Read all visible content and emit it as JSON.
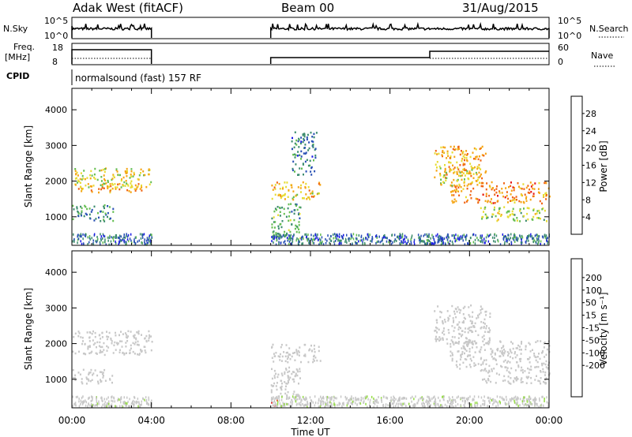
{
  "header": {
    "radar": "Adak West (fitACF)",
    "beam": "Beam 00",
    "date": "31/Aug/2015"
  },
  "params": {
    "nsky_label": "N.Sky",
    "nsky_ticks": [
      "10^5",
      "10^0"
    ],
    "nsearch_label": "N.Search",
    "nsearch_ticks": [
      "10^5",
      "10^0"
    ],
    "freq_label_1": "Freq.",
    "freq_label_2": "[MHz]",
    "freq_ticks": [
      "18",
      "8"
    ],
    "nave_label": "Nave",
    "nave_ticks": [
      "60",
      "0"
    ],
    "cpid_label": "CPID",
    "cpid_text": "normalsound (fast) 157 RF"
  },
  "chart_data": [
    {
      "type": "heatmap",
      "name": "power",
      "ylabel": "Slant Range [km]",
      "xlabel": "Time UT",
      "xlim": [
        0,
        24
      ],
      "ylim": [
        200,
        4600
      ],
      "ytick_labels": [
        "1000",
        "2000",
        "3000",
        "4000"
      ],
      "colorbar": {
        "label": "Power [dB]",
        "range": [
          0,
          32
        ],
        "tick_labels": [
          "4",
          "8",
          "12",
          "16",
          "20",
          "24",
          "28"
        ],
        "colors": [
          "#1a1ae6",
          "#2850b4",
          "#3c8c6e",
          "#64be50",
          "#e6dc32",
          "#f5a514",
          "#f06414",
          "#e61414"
        ]
      },
      "bands": [
        {
          "t0": 0.0,
          "t1": 4.0,
          "r0": 1850,
          "r1": 2400,
          "level": 18
        },
        {
          "t0": 0.3,
          "t1": 3.5,
          "r0": 1700,
          "r1": 1950,
          "level": 22
        },
        {
          "t0": 0.0,
          "t1": 2.2,
          "r0": 900,
          "r1": 1350,
          "level": 10
        },
        {
          "t0": 10.0,
          "t1": 12.5,
          "r0": 1500,
          "r1": 2000,
          "level": 20
        },
        {
          "t0": 11.0,
          "t1": 12.3,
          "r0": 2200,
          "r1": 3400,
          "level": 8
        },
        {
          "t0": 10.0,
          "t1": 11.5,
          "r0": 400,
          "r1": 1400,
          "level": 12
        },
        {
          "t0": 18.2,
          "t1": 20.8,
          "r0": 2100,
          "r1": 3000,
          "level": 22
        },
        {
          "t0": 19.0,
          "t1": 24.0,
          "r0": 1400,
          "r1": 2000,
          "level": 24
        },
        {
          "t0": 20.5,
          "t1": 24.0,
          "r0": 900,
          "r1": 1300,
          "level": 16
        },
        {
          "t0": 18.5,
          "t1": 20.5,
          "r0": 1900,
          "r1": 2400,
          "level": 18
        }
      ]
    },
    {
      "type": "heatmap",
      "name": "velocity",
      "ylabel": "Slant Range [km]",
      "xlabel": "Time UT",
      "xlim": [
        0,
        24
      ],
      "ylim": [
        200,
        4600
      ],
      "ytick_labels": [
        "1000",
        "2000",
        "3000",
        "4000"
      ],
      "colorbar": {
        "label": "Velocity [m s⁻¹]",
        "range": [
          -250,
          250
        ],
        "tick_labels": [
          "200",
          "100",
          "50",
          "15",
          "-15",
          "-50",
          "-100",
          "-200"
        ],
        "colors": [
          "#e61414",
          "#f05014",
          "#f08c14",
          "#f5c83c",
          "#c8c8c8",
          "#c8c8c8",
          "#96dc46",
          "#50be3c",
          "#3c8c6e",
          "#2850b4",
          "#1a1ae6"
        ]
      },
      "bands": [
        {
          "t0": 0.0,
          "t1": 4.0,
          "r0": 1700,
          "r1": 2400,
          "level": 0
        },
        {
          "t0": 0.0,
          "t1": 2.0,
          "r0": 900,
          "r1": 1300,
          "level": 0
        },
        {
          "t0": 10.0,
          "t1": 12.5,
          "r0": 1500,
          "r1": 2000,
          "level": 0
        },
        {
          "t0": 10.0,
          "t1": 11.5,
          "r0": 400,
          "r1": 1400,
          "level": -30
        },
        {
          "t0": 10.0,
          "t1": 10.3,
          "r0": 250,
          "r1": 450,
          "level": -200
        },
        {
          "t0": 18.2,
          "t1": 21.0,
          "r0": 2000,
          "r1": 3100,
          "level": 0
        },
        {
          "t0": 19.0,
          "t1": 24.0,
          "r0": 1300,
          "r1": 2100,
          "level": 0
        },
        {
          "t0": 20.5,
          "t1": 24.0,
          "r0": 900,
          "r1": 1300,
          "level": 0
        }
      ]
    }
  ],
  "time_ticks": [
    "00:00",
    "04:00",
    "08:00",
    "12:00",
    "16:00",
    "20:00",
    "00:00"
  ],
  "xlabel": "Time UT"
}
